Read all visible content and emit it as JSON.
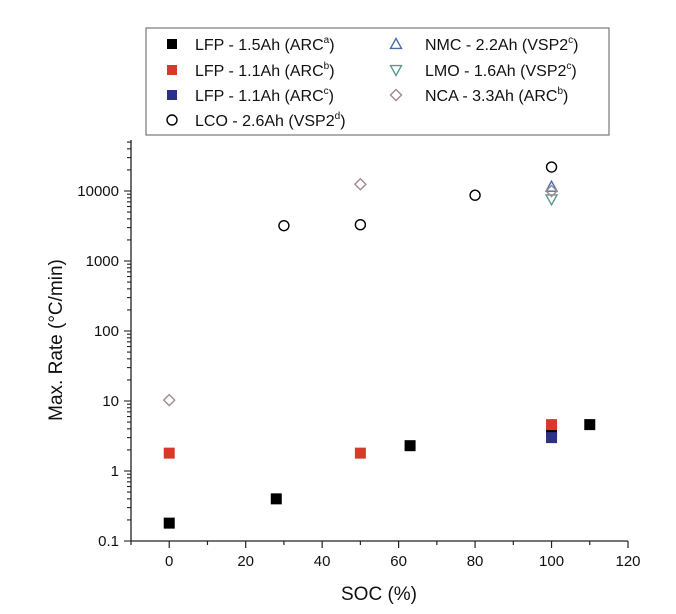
{
  "chart_data": {
    "type": "scatter",
    "title": "",
    "xlabel": "SOC (%)",
    "ylabel": "Max. Rate (°C/min)",
    "xlim": [
      -10,
      120
    ],
    "ylim": [
      0.1,
      50000
    ],
    "yscale": "log",
    "grid": false,
    "legend_position": "top",
    "x_ticks": [
      0,
      20,
      40,
      60,
      80,
      100,
      120
    ],
    "x_tick_labels": [
      "0",
      "20",
      "40",
      "60",
      "80",
      "100",
      "120"
    ],
    "y_ticks": [
      0.1,
      1,
      10,
      100,
      1000,
      10000
    ],
    "y_tick_labels": [
      "0.1",
      "1",
      "10",
      "100",
      "1000",
      "10000"
    ],
    "series": [
      {
        "name": "LFP - 1.5Ah (ARC",
        "sup": "a",
        "name_suffix": ")",
        "marker": "square",
        "filled": true,
        "color": "#000000",
        "points": [
          {
            "x": 0,
            "y": 0.18
          },
          {
            "x": 28,
            "y": 0.4
          },
          {
            "x": 63,
            "y": 2.3
          },
          {
            "x": 100,
            "y": 3.7
          },
          {
            "x": 110,
            "y": 4.6
          }
        ]
      },
      {
        "name": "LFP - 1.1Ah (ARC",
        "sup": "b",
        "name_suffix": ")",
        "marker": "square",
        "filled": true,
        "color": "#d8392b",
        "points": [
          {
            "x": 0,
            "y": 1.8
          },
          {
            "x": 50,
            "y": 1.8
          },
          {
            "x": 100,
            "y": 4.6
          }
        ]
      },
      {
        "name": "LFP - 1.1Ah (ARC",
        "sup": "c",
        "name_suffix": ")",
        "marker": "square",
        "filled": true,
        "color": "#2e2f86",
        "points": [
          {
            "x": 100,
            "y": 3.0
          }
        ]
      },
      {
        "name": "LCO - 2.6Ah (VSP2",
        "sup": "d",
        "name_suffix": ")",
        "marker": "circle",
        "filled": false,
        "color": "#000000",
        "points": [
          {
            "x": 30,
            "y": 3200
          },
          {
            "x": 50,
            "y": 3300
          },
          {
            "x": 80,
            "y": 8700
          },
          {
            "x": 100,
            "y": 22000
          }
        ]
      },
      {
        "name": "NMC - 2.2Ah (VSP2",
        "sup": "c",
        "name_suffix": ")",
        "marker": "triangle-up",
        "filled": false,
        "color": "#4a6fa5",
        "points": [
          {
            "x": 100,
            "y": 11500
          }
        ]
      },
      {
        "name": "LMO - 1.6Ah (VSP2",
        "sup": "c",
        "name_suffix": ")",
        "marker": "triangle-down",
        "filled": false,
        "color": "#5a9a8c",
        "points": [
          {
            "x": 100,
            "y": 7600
          }
        ]
      },
      {
        "name": "NCA - 3.3Ah (ARC",
        "sup": "b",
        "name_suffix": ")",
        "marker": "diamond",
        "filled": false,
        "color": "#a08a92",
        "points": [
          {
            "x": 0,
            "y": 10.3
          },
          {
            "x": 50,
            "y": 12500
          },
          {
            "x": 100,
            "y": 10000
          }
        ]
      }
    ]
  }
}
